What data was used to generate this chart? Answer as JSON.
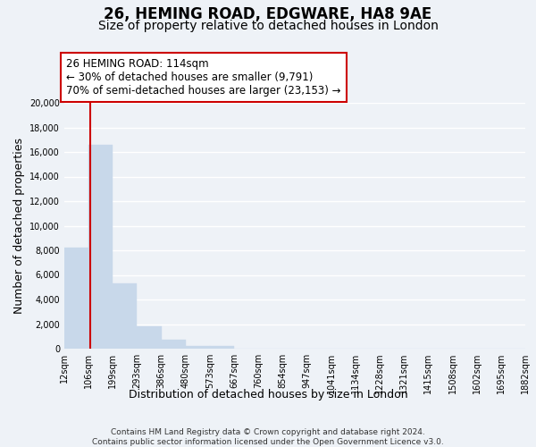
{
  "title": "26, HEMING ROAD, EDGWARE, HA8 9AE",
  "subtitle": "Size of property relative to detached houses in London",
  "xlabel": "Distribution of detached houses by size in London",
  "ylabel": "Number of detached properties",
  "bar_values": [
    8200,
    16600,
    5300,
    1800,
    750,
    250,
    250,
    0,
    0,
    0,
    0,
    0,
    0,
    0,
    0,
    0,
    0,
    0,
    0
  ],
  "bin_labels": [
    "12sqm",
    "106sqm",
    "199sqm",
    "293sqm",
    "386sqm",
    "480sqm",
    "573sqm",
    "667sqm",
    "760sqm",
    "854sqm",
    "947sqm",
    "1041sqm",
    "1134sqm",
    "1228sqm",
    "1321sqm",
    "1415sqm",
    "1508sqm",
    "1602sqm",
    "1695sqm",
    "1882sqm"
  ],
  "bar_color": "#c8d8ea",
  "bar_edge_color": "#c8d8ea",
  "property_line_color": "#cc0000",
  "annotation_line1": "26 HEMING ROAD: 114sqm",
  "annotation_line2": "← 30% of detached houses are smaller (9,791)",
  "annotation_line3": "70% of semi-detached houses are larger (23,153) →",
  "ylim": [
    0,
    20000
  ],
  "yticks": [
    0,
    2000,
    4000,
    6000,
    8000,
    10000,
    12000,
    14000,
    16000,
    18000,
    20000
  ],
  "footnote1": "Contains HM Land Registry data © Crown copyright and database right 2024.",
  "footnote2": "Contains public sector information licensed under the Open Government Licence v3.0.",
  "background_color": "#eef2f7",
  "grid_color": "#ffffff",
  "title_fontsize": 12,
  "subtitle_fontsize": 10,
  "annotation_fontsize": 8.5,
  "tick_fontsize": 7,
  "ylabel_fontsize": 9,
  "xlabel_fontsize": 9,
  "footnote_fontsize": 6.5
}
